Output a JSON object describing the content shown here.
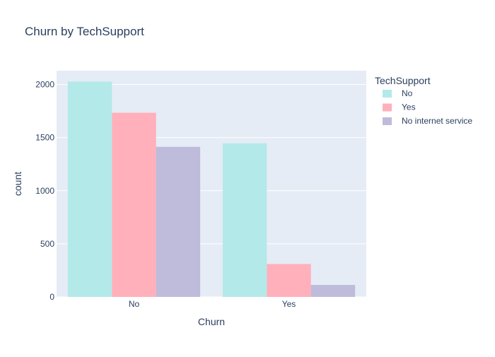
{
  "chart_data": {
    "type": "bar",
    "title": "Churn by TechSupport",
    "xlabel": "Churn",
    "ylabel": "count",
    "categories": [
      "No",
      "Yes"
    ],
    "series": [
      {
        "name": "No",
        "values": [
          2027,
          1446
        ],
        "color": "#b3e9e9"
      },
      {
        "name": "Yes",
        "values": [
          1734,
          310
        ],
        "color": "#ffb0ba"
      },
      {
        "name": "No internet service",
        "values": [
          1413,
          113
        ],
        "color": "#bfbbdb"
      }
    ],
    "ylim": [
      0,
      2130
    ],
    "yticks": [
      0,
      500,
      1000,
      1500,
      2000
    ],
    "legend": {
      "title": "TechSupport",
      "position": "top-right"
    },
    "grid": true,
    "plot_background": "#e5ecf6"
  }
}
